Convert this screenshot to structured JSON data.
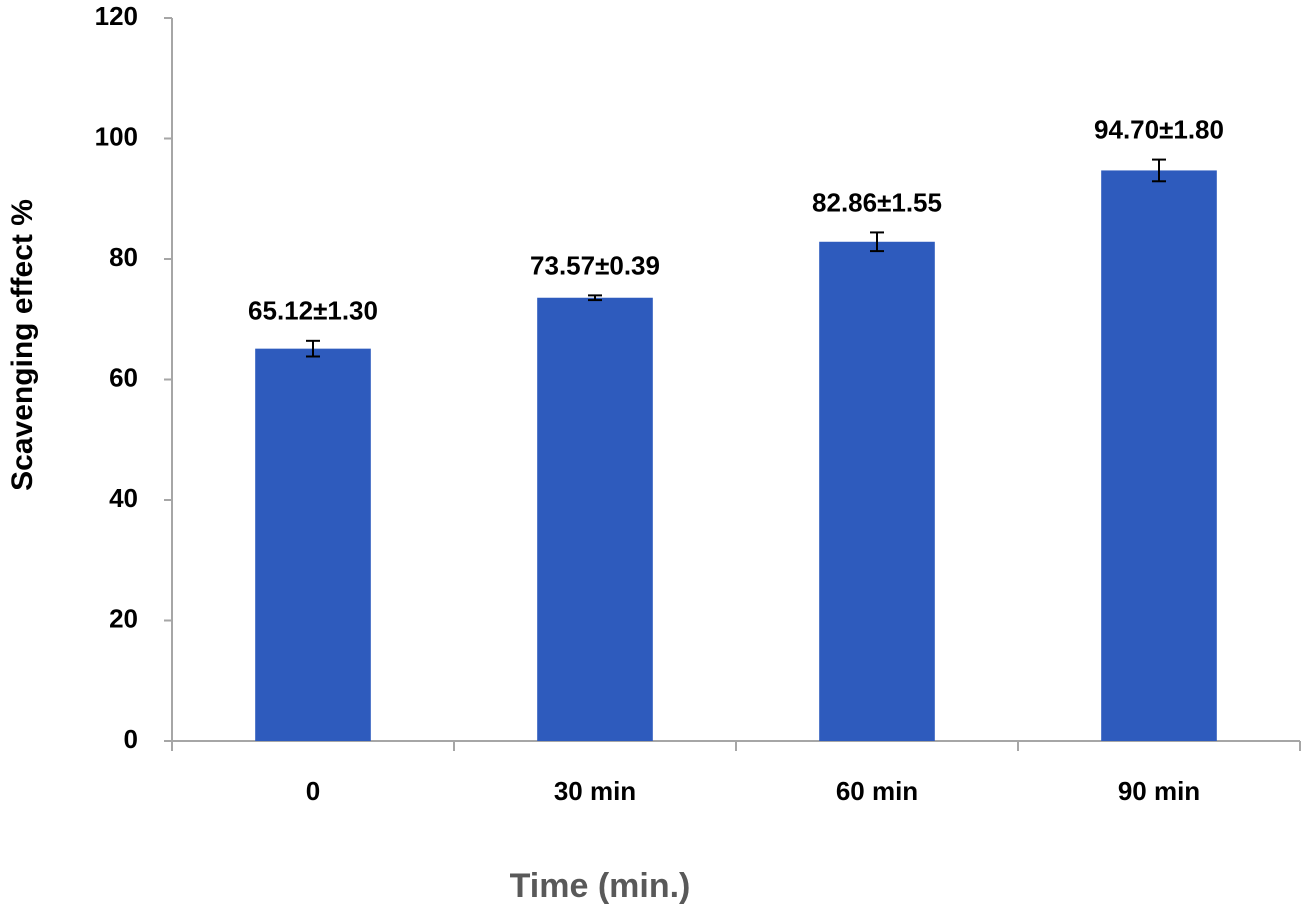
{
  "chart_data": {
    "type": "bar",
    "x_label": "Time (min.)",
    "y_label": "Scavenging effect %",
    "categories": [
      "0",
      "30 min",
      "60 min",
      "90 min"
    ],
    "values": [
      65.12,
      73.57,
      82.86,
      94.7
    ],
    "errors": [
      1.3,
      0.39,
      1.55,
      1.8
    ],
    "value_labels": [
      "65.12±1.30",
      "73.57±0.39",
      "82.86±1.55",
      "94.70±1.80"
    ],
    "color": "#2e5bbd",
    "ylim": [
      0,
      120
    ],
    "yticks": [
      0,
      20,
      40,
      60,
      80,
      100,
      120
    ],
    "grid": false
  }
}
